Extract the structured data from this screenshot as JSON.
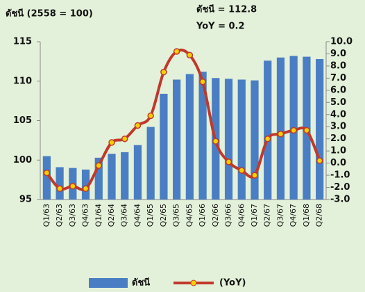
{
  "chart_data": {
    "type": "bar_line",
    "title": "ดัชนี (2558 = 100)",
    "annotations": [
      "ดัชนี = 112.8",
      "YoY = 0.2"
    ],
    "categories": [
      "Q1/63",
      "Q2/63",
      "Q3/63",
      "Q4/63",
      "Q1/64",
      "Q2/64",
      "Q3/64",
      "Q4/64",
      "Q1/65",
      "Q2/65",
      "Q3/65",
      "Q4/65",
      "Q1/66",
      "Q2/66",
      "Q3/66",
      "Q4/66",
      "Q1/67",
      "Q2/67",
      "Q3/67",
      "Q4/67",
      "Q1/68",
      "Q2/68"
    ],
    "series": [
      {
        "name": "ดัชนี",
        "color": "#4a7ec4",
        "kind": "bar",
        "values": [
          100.5,
          99.1,
          99.0,
          98.8,
          100.3,
          100.8,
          101.0,
          101.9,
          104.2,
          108.4,
          110.2,
          110.9,
          111.2,
          110.4,
          110.3,
          110.2,
          110.1,
          112.6,
          113.0,
          113.2,
          113.1,
          112.8
        ]
      },
      {
        "name": "(YoY)",
        "color": "#c0392b",
        "marker_color": "#f5d000",
        "kind": "line",
        "axis": "y2",
        "values": [
          -0.8,
          -2.1,
          -1.9,
          -2.1,
          -0.2,
          1.7,
          2.0,
          3.1,
          3.9,
          7.5,
          9.2,
          8.9,
          6.7,
          1.8,
          0.1,
          -0.6,
          -1.0,
          2.0,
          2.4,
          2.7,
          2.7,
          0.2
        ]
      }
    ],
    "ylim": [
      95,
      115
    ],
    "yticks": [
      95,
      100,
      105,
      110,
      115
    ],
    "y2lim": [
      -3,
      10
    ],
    "y2ticks": [
      {
        "value": -3,
        "label": "-3.0"
      },
      {
        "value": -2,
        "label": "-2.0"
      },
      {
        "value": -1,
        "label": "-1.0"
      },
      {
        "value": 0,
        "label": "0.0"
      },
      {
        "value": 1,
        "label": "1.0"
      },
      {
        "value": 2,
        "label": "2.0"
      },
      {
        "value": 3,
        "label": "3.0"
      },
      {
        "value": 4,
        "label": "4.0"
      },
      {
        "value": 5,
        "label": "5.0"
      },
      {
        "value": 6,
        "label": "6.0"
      },
      {
        "value": 7,
        "label": "7.0"
      },
      {
        "value": 8,
        "label": "8.0"
      },
      {
        "value": 9,
        "label": "9.0"
      },
      {
        "value": 10,
        "label": "10.0"
      }
    ]
  }
}
